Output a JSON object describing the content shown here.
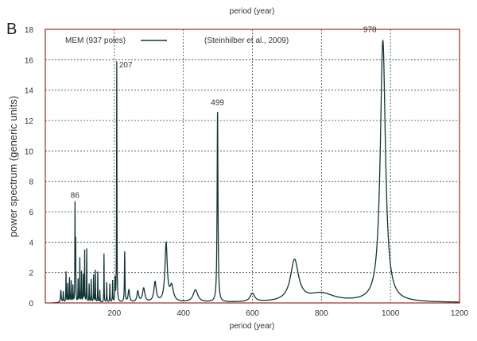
{
  "panel_label": "B",
  "chart_data": {
    "type": "line",
    "top_label": "period (year)",
    "xlabel": "period (year)",
    "ylabel": "power spectrum (generic units)",
    "xlim": [
      0,
      1200
    ],
    "ylim": [
      0,
      18
    ],
    "xticks": [
      200,
      400,
      600,
      800,
      1000,
      1200
    ],
    "yticks": [
      0,
      2,
      4,
      6,
      8,
      10,
      12,
      14,
      16,
      18
    ],
    "grid": true,
    "legend": {
      "position": "top-left",
      "entry": "MEM (937 poles)",
      "note": "(Steinhilber et al., 2009)"
    },
    "colors": {
      "curve": "#123535",
      "frame": "#9b2a22",
      "grid": "#3a4a4a"
    },
    "annotations": [
      {
        "text": "86",
        "x": 86,
        "y": 6.4
      },
      {
        "text": "207",
        "x": 207,
        "y": 15.8
      },
      {
        "text": "499",
        "x": 499,
        "y": 12.5
      },
      {
        "text": "978",
        "x": 978,
        "y": 17.3
      }
    ],
    "series": [
      {
        "name": "MEM (937 poles)",
        "peaks": [
          {
            "period": 45,
            "power": 0.8,
            "width": 1.2
          },
          {
            "period": 52,
            "power": 0.7,
            "width": 0.8
          },
          {
            "period": 60,
            "power": 2.0,
            "width": 0.6
          },
          {
            "period": 65,
            "power": 1.2,
            "width": 0.6
          },
          {
            "period": 70,
            "power": 1.6,
            "width": 0.6
          },
          {
            "period": 75,
            "power": 1.4,
            "width": 0.6
          },
          {
            "period": 80,
            "power": 1.1,
            "width": 0.6
          },
          {
            "period": 86,
            "power": 6.4,
            "width": 0.5
          },
          {
            "period": 88,
            "power": 3.9,
            "width": 0.5
          },
          {
            "period": 95,
            "power": 1.5,
            "width": 0.6
          },
          {
            "period": 100,
            "power": 2.9,
            "width": 0.5
          },
          {
            "period": 105,
            "power": 2.0,
            "width": 0.5
          },
          {
            "period": 110,
            "power": 1.8,
            "width": 0.6
          },
          {
            "period": 114,
            "power": 3.4,
            "width": 0.5
          },
          {
            "period": 120,
            "power": 3.5,
            "width": 0.5
          },
          {
            "period": 127,
            "power": 1.2,
            "width": 0.6
          },
          {
            "period": 133,
            "power": 1.5,
            "width": 0.6
          },
          {
            "period": 140,
            "power": 1.8,
            "width": 0.6
          },
          {
            "period": 145,
            "power": 2.1,
            "width": 0.5
          },
          {
            "period": 152,
            "power": 2.0,
            "width": 0.5
          },
          {
            "period": 158,
            "power": 0.8,
            "width": 0.6
          },
          {
            "period": 170,
            "power": 3.2,
            "width": 0.5
          },
          {
            "period": 178,
            "power": 1.3,
            "width": 0.6
          },
          {
            "period": 187,
            "power": 1.2,
            "width": 0.6
          },
          {
            "period": 195,
            "power": 1.4,
            "width": 0.6
          },
          {
            "period": 202,
            "power": 1.5,
            "width": 0.8
          },
          {
            "period": 207,
            "power": 15.8,
            "width": 0.6
          },
          {
            "period": 230,
            "power": 3.3,
            "width": 0.9
          },
          {
            "period": 242,
            "power": 0.8,
            "width": 2.5
          },
          {
            "period": 268,
            "power": 0.7,
            "width": 3
          },
          {
            "period": 285,
            "power": 0.9,
            "width": 4
          },
          {
            "period": 318,
            "power": 1.3,
            "width": 4
          },
          {
            "period": 350,
            "power": 3.8,
            "width": 4
          },
          {
            "period": 366,
            "power": 1.0,
            "width": 6
          },
          {
            "period": 435,
            "power": 0.8,
            "width": 8
          },
          {
            "period": 499,
            "power": 12.5,
            "width": 1.5
          },
          {
            "period": 600,
            "power": 0.55,
            "width": 8
          },
          {
            "period": 722,
            "power": 2.7,
            "width": 14
          },
          {
            "period": 800,
            "power": 0.55,
            "width": 45
          },
          {
            "period": 978,
            "power": 17.2,
            "width": 9
          }
        ]
      }
    ]
  }
}
